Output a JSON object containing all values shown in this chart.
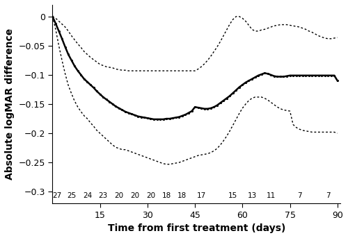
{
  "xlabel": "Time from first treatment (days)",
  "ylabel": "Absolute logMAR difference",
  "xlim": [
    0,
    91
  ],
  "ylim": [
    -0.32,
    0.02
  ],
  "xticks": [
    15,
    30,
    45,
    60,
    75,
    90
  ],
  "yticks": [
    0,
    -0.05,
    -0.1,
    -0.15,
    -0.2,
    -0.25,
    -0.3
  ],
  "n_labels": [
    "27",
    "25",
    "24",
    "23",
    "20",
    "20",
    "20",
    "18",
    "18",
    "17",
    "15",
    "13",
    "11",
    "7",
    "7"
  ],
  "n_x": [
    1.5,
    6,
    11,
    16,
    21,
    26,
    31,
    36,
    41,
    47,
    57,
    63,
    69,
    78,
    87
  ],
  "mean_x": [
    0,
    1,
    2,
    3,
    4,
    5,
    6,
    7,
    8,
    9,
    10,
    11,
    12,
    13,
    14,
    15,
    16,
    17,
    18,
    19,
    20,
    21,
    22,
    23,
    24,
    25,
    26,
    27,
    28,
    29,
    30,
    31,
    32,
    33,
    34,
    35,
    36,
    37,
    38,
    39,
    40,
    41,
    42,
    43,
    44,
    45,
    46,
    47,
    48,
    49,
    50,
    51,
    52,
    53,
    54,
    55,
    56,
    57,
    58,
    59,
    60,
    61,
    62,
    63,
    64,
    65,
    66,
    67,
    68,
    69,
    70,
    71,
    72,
    73,
    74,
    75,
    76,
    77,
    78,
    79,
    80,
    81,
    82,
    83,
    84,
    85,
    86,
    87,
    88,
    89,
    90
  ],
  "mean_y": [
    0.0,
    -0.012,
    -0.025,
    -0.038,
    -0.052,
    -0.065,
    -0.075,
    -0.085,
    -0.093,
    -0.1,
    -0.107,
    -0.112,
    -0.117,
    -0.122,
    -0.128,
    -0.133,
    -0.138,
    -0.142,
    -0.146,
    -0.15,
    -0.154,
    -0.157,
    -0.16,
    -0.163,
    -0.165,
    -0.167,
    -0.169,
    -0.171,
    -0.172,
    -0.173,
    -0.174,
    -0.175,
    -0.176,
    -0.176,
    -0.176,
    -0.176,
    -0.175,
    -0.175,
    -0.174,
    -0.173,
    -0.172,
    -0.17,
    -0.168,
    -0.165,
    -0.162,
    -0.155,
    -0.156,
    -0.157,
    -0.158,
    -0.158,
    -0.157,
    -0.155,
    -0.152,
    -0.148,
    -0.144,
    -0.14,
    -0.136,
    -0.131,
    -0.126,
    -0.121,
    -0.117,
    -0.113,
    -0.11,
    -0.107,
    -0.104,
    -0.101,
    -0.099,
    -0.097,
    -0.098,
    -0.1,
    -0.102,
    -0.103,
    -0.103,
    -0.103,
    -0.102,
    -0.101,
    -0.101,
    -0.101,
    -0.101,
    -0.101,
    -0.101,
    -0.101,
    -0.101,
    -0.101,
    -0.101,
    -0.101,
    -0.101,
    -0.101,
    -0.101,
    -0.101,
    -0.11
  ],
  "upper_x": [
    0,
    1,
    2,
    3,
    4,
    5,
    6,
    7,
    8,
    9,
    10,
    11,
    12,
    13,
    14,
    15,
    16,
    17,
    18,
    19,
    20,
    21,
    22,
    23,
    24,
    25,
    26,
    27,
    28,
    29,
    30,
    31,
    32,
    33,
    34,
    35,
    36,
    37,
    38,
    39,
    40,
    41,
    42,
    43,
    44,
    45,
    46,
    47,
    48,
    49,
    50,
    51,
    52,
    53,
    54,
    55,
    56,
    57,
    58,
    59,
    60,
    61,
    62,
    63,
    64,
    65,
    66,
    67,
    68,
    69,
    70,
    71,
    72,
    73,
    74,
    75,
    76,
    77,
    78,
    79,
    80,
    81,
    82,
    83,
    84,
    85,
    86,
    87,
    88,
    89,
    90
  ],
  "upper_y": [
    0.0,
    -0.003,
    -0.008,
    -0.013,
    -0.018,
    -0.025,
    -0.033,
    -0.04,
    -0.047,
    -0.053,
    -0.06,
    -0.065,
    -0.07,
    -0.074,
    -0.078,
    -0.082,
    -0.084,
    -0.086,
    -0.087,
    -0.088,
    -0.09,
    -0.091,
    -0.092,
    -0.092,
    -0.093,
    -0.093,
    -0.093,
    -0.093,
    -0.093,
    -0.093,
    -0.093,
    -0.093,
    -0.093,
    -0.093,
    -0.093,
    -0.093,
    -0.093,
    -0.093,
    -0.093,
    -0.093,
    -0.093,
    -0.093,
    -0.093,
    -0.093,
    -0.093,
    -0.093,
    -0.09,
    -0.086,
    -0.081,
    -0.075,
    -0.068,
    -0.06,
    -0.052,
    -0.043,
    -0.033,
    -0.023,
    -0.013,
    -0.005,
    0.0,
    0.0,
    -0.003,
    -0.008,
    -0.015,
    -0.022,
    -0.025,
    -0.025,
    -0.023,
    -0.022,
    -0.02,
    -0.018,
    -0.016,
    -0.015,
    -0.014,
    -0.014,
    -0.014,
    -0.015,
    -0.016,
    -0.017,
    -0.018,
    -0.02,
    -0.022,
    -0.025,
    -0.027,
    -0.03,
    -0.033,
    -0.035,
    -0.037,
    -0.038,
    -0.038,
    -0.037,
    -0.036
  ],
  "lower_x": [
    0,
    1,
    2,
    3,
    4,
    5,
    6,
    7,
    8,
    9,
    10,
    11,
    12,
    13,
    14,
    15,
    16,
    17,
    18,
    19,
    20,
    21,
    22,
    23,
    24,
    25,
    26,
    27,
    28,
    29,
    30,
    31,
    32,
    33,
    34,
    35,
    36,
    37,
    38,
    39,
    40,
    41,
    42,
    43,
    44,
    45,
    46,
    47,
    48,
    49,
    50,
    51,
    52,
    53,
    54,
    55,
    56,
    57,
    58,
    59,
    60,
    61,
    62,
    63,
    64,
    65,
    66,
    67,
    68,
    69,
    70,
    71,
    72,
    73,
    74,
    75,
    76,
    77,
    78,
    79,
    80,
    81,
    82,
    83,
    84,
    85,
    86,
    87,
    88,
    89,
    90
  ],
  "lower_y": [
    0.0,
    -0.022,
    -0.05,
    -0.075,
    -0.098,
    -0.118,
    -0.132,
    -0.145,
    -0.155,
    -0.163,
    -0.17,
    -0.175,
    -0.182,
    -0.188,
    -0.195,
    -0.2,
    -0.205,
    -0.21,
    -0.215,
    -0.22,
    -0.224,
    -0.226,
    -0.228,
    -0.228,
    -0.23,
    -0.232,
    -0.234,
    -0.236,
    -0.238,
    -0.24,
    -0.242,
    -0.244,
    -0.246,
    -0.248,
    -0.25,
    -0.252,
    -0.253,
    -0.253,
    -0.252,
    -0.251,
    -0.25,
    -0.248,
    -0.246,
    -0.244,
    -0.242,
    -0.24,
    -0.238,
    -0.237,
    -0.236,
    -0.235,
    -0.233,
    -0.23,
    -0.226,
    -0.22,
    -0.213,
    -0.205,
    -0.196,
    -0.186,
    -0.176,
    -0.166,
    -0.157,
    -0.15,
    -0.144,
    -0.14,
    -0.138,
    -0.138,
    -0.138,
    -0.14,
    -0.143,
    -0.147,
    -0.151,
    -0.155,
    -0.158,
    -0.16,
    -0.161,
    -0.162,
    -0.185,
    -0.19,
    -0.193,
    -0.195,
    -0.196,
    -0.197,
    -0.198,
    -0.198,
    -0.198,
    -0.198,
    -0.198,
    -0.198,
    -0.198,
    -0.198,
    -0.2
  ]
}
